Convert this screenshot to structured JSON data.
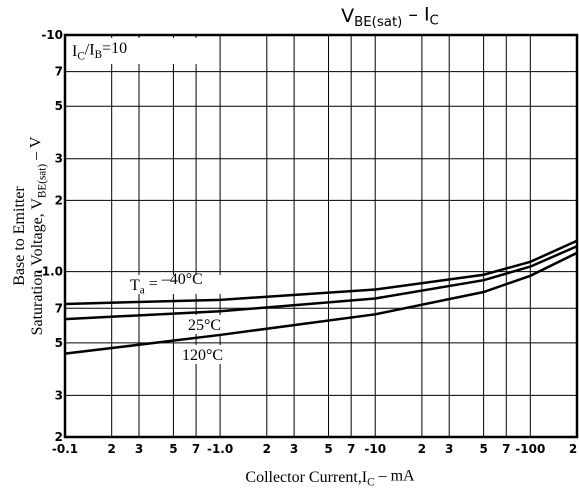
{
  "chart_data": {
    "type": "line",
    "title": [
      "V",
      "BE(sat)",
      "  –  I",
      "C"
    ],
    "xlabel": [
      "Collector Current,I",
      "C",
      " – mA"
    ],
    "ylabel_line1": "Base to Emitter",
    "ylabel_line2": [
      "Saturation Voltage, V",
      "BE(sat)",
      " – V"
    ],
    "annotation": [
      "I",
      "C",
      "/I",
      "B",
      "=10"
    ],
    "temp_prefix": [
      "T",
      "a",
      " = "
    ],
    "xscale": "log",
    "yscale": "log",
    "grid": true,
    "xlim": [
      -0.1,
      -200
    ],
    "ylim": [
      -0.2,
      -10
    ],
    "xticks": [
      {
        "value": -0.1,
        "label": "-0.1"
      },
      {
        "value": -0.2,
        "label": "2"
      },
      {
        "value": -0.3,
        "label": "3"
      },
      {
        "value": -0.5,
        "label": "5"
      },
      {
        "value": -0.7,
        "label": "7"
      },
      {
        "value": -1,
        "label": "-1.0"
      },
      {
        "value": -2,
        "label": "2"
      },
      {
        "value": -3,
        "label": "3"
      },
      {
        "value": -5,
        "label": "5"
      },
      {
        "value": -7,
        "label": "7"
      },
      -10,
      {
        "value": -20,
        "label": "2"
      },
      {
        "value": -30,
        "label": "3"
      },
      {
        "value": -50,
        "label": "5"
      },
      {
        "value": -70,
        "label": "7"
      },
      -100,
      {
        "value": -200,
        "label": "2"
      }
    ],
    "yticks": [
      {
        "value": -0.2,
        "label": "2"
      },
      {
        "value": -0.3,
        "label": "3"
      },
      {
        "value": -0.5,
        "label": "5"
      },
      {
        "value": -0.7,
        "label": "7"
      },
      {
        "value": -1,
        "label": "-1.0"
      },
      {
        "value": -2,
        "label": "2"
      },
      {
        "value": -3,
        "label": "3"
      },
      {
        "value": -5,
        "label": "5"
      },
      {
        "value": -7,
        "label": "7"
      },
      -10
    ],
    "x": [
      -0.1,
      -1,
      -10,
      -50,
      -100,
      -200
    ],
    "series": [
      {
        "name": "–40°C",
        "color": "#000000",
        "values": [
          -0.73,
          -0.76,
          -0.84,
          -0.97,
          -1.1,
          -1.35
        ]
      },
      {
        "name": "25°C",
        "color": "#000000",
        "values": [
          -0.63,
          -0.68,
          -0.77,
          -0.92,
          -1.05,
          -1.28
        ]
      },
      {
        "name": "120°C",
        "color": "#000000",
        "values": [
          -0.45,
          -0.54,
          -0.66,
          -0.82,
          -0.96,
          -1.2
        ]
      }
    ]
  }
}
